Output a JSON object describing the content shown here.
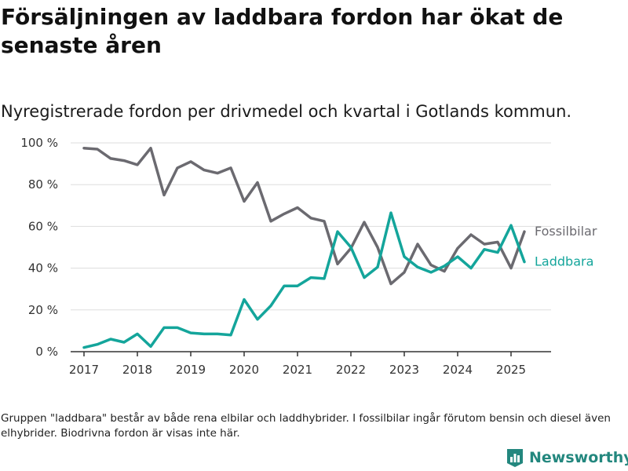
{
  "header": {
    "title": "Försäljningen av laddbara fordon har ökat de senaste åren",
    "subtitle": "Nyregistrerade fordon per drivmedel och kvartal i Gotlands kommun."
  },
  "footer": {
    "note": "Gruppen \"laddbara\" består av både rena elbilar och laddhybrider. I fossilbilar ingår förutom bensin och diesel även elhybrider. Biodrivna fordon är visas inte här.",
    "brand": "Newsworthy",
    "brand_icon": "bar-chart-logo-icon"
  },
  "colors": {
    "fossil": "#6b6a70",
    "laddbara": "#14a59b",
    "grid": "#dddddd",
    "axis": "#333333",
    "brand": "#23877e"
  },
  "chart_data": {
    "type": "line",
    "xlabel": "",
    "ylabel": "",
    "xlim": [
      2016.75,
      2025.75
    ],
    "ylim": [
      0,
      100
    ],
    "x_ticks": [
      2017,
      2018,
      2019,
      2020,
      2021,
      2022,
      2023,
      2024,
      2025
    ],
    "x_tick_labels": [
      "2017",
      "2018",
      "2019",
      "2020",
      "2021",
      "2022",
      "2023",
      "2024",
      "2025"
    ],
    "y_ticks": [
      0,
      20,
      40,
      60,
      80,
      100
    ],
    "y_tick_labels": [
      "0 %",
      "20 %",
      "40 %",
      "60 %",
      "80 %",
      "100 %"
    ],
    "grid": true,
    "legend": "inline-right",
    "x": [
      2017,
      2017.25,
      2017.5,
      2017.75,
      2018,
      2018.25,
      2018.5,
      2018.75,
      2019,
      2019.25,
      2019.5,
      2019.75,
      2020,
      2020.25,
      2020.5,
      2020.75,
      2021,
      2021.25,
      2021.5,
      2021.75,
      2022,
      2022.25,
      2022.5,
      2022.75,
      2023,
      2023.25,
      2023.5,
      2023.75,
      2024,
      2024.25,
      2024.5,
      2024.75,
      2025,
      2025.25
    ],
    "series": [
      {
        "name": "Fossilbilar",
        "color": "#6b6a70",
        "values": [
          97.5,
          97,
          92.5,
          91.5,
          89.5,
          97.5,
          75,
          88,
          91,
          87,
          85.5,
          88,
          72,
          81,
          62.5,
          66,
          69,
          64,
          62.5,
          42,
          49.5,
          62,
          50,
          32.5,
          38,
          51.5,
          41.5,
          38.5,
          49.5,
          56,
          51.5,
          52.5,
          40,
          57.5
        ]
      },
      {
        "name": "Laddbara",
        "color": "#14a59b",
        "values": [
          2,
          3.5,
          6,
          4.5,
          8.5,
          2.5,
          11.5,
          11.5,
          9,
          8.5,
          8.5,
          8,
          25,
          15.5,
          22,
          31.5,
          31.5,
          35.5,
          35,
          57.5,
          50,
          35.5,
          40.5,
          66.5,
          45.5,
          40.5,
          38,
          41,
          45.5,
          40,
          49,
          47.5,
          60.5,
          43
        ]
      }
    ]
  }
}
